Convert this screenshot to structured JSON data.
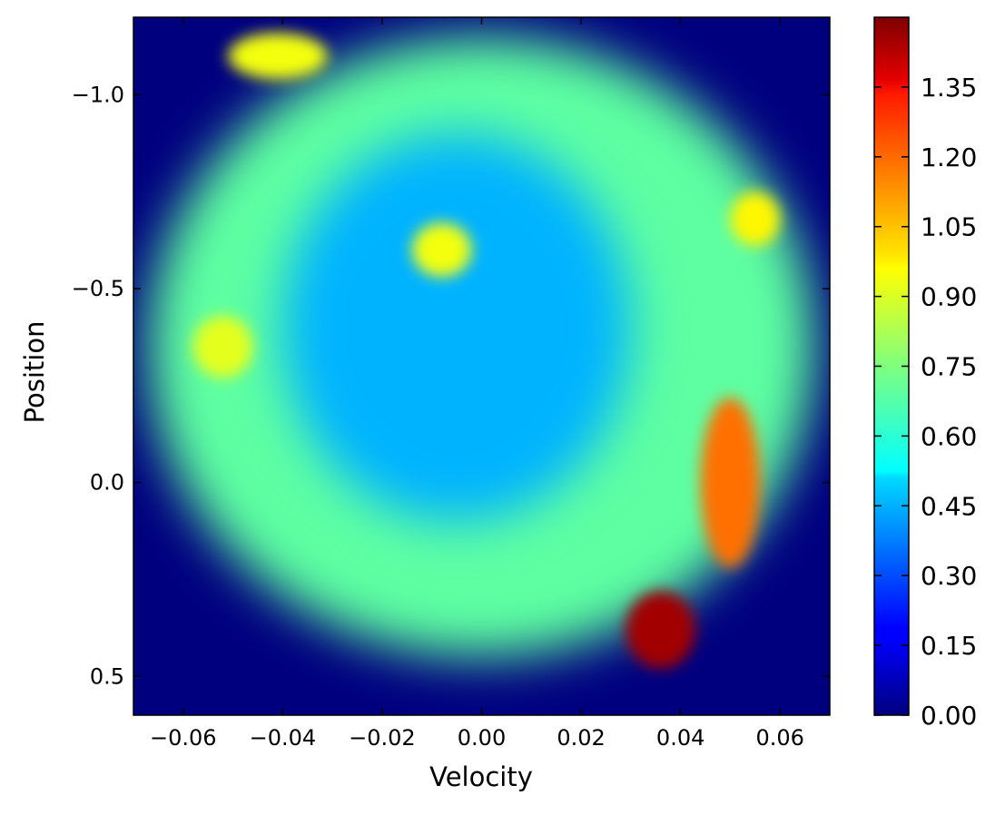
{
  "chart_data": {
    "type": "heatmap",
    "title": "",
    "xlabel": "Velocity",
    "ylabel": "Position",
    "xlim": [
      -0.07,
      0.07
    ],
    "ylim": [
      -1.2,
      0.6
    ],
    "y_inverted": true,
    "x_ticks": [
      -0.06,
      -0.04,
      -0.02,
      0.0,
      0.02,
      0.04,
      0.06
    ],
    "x_tick_labels": [
      "−0.06",
      "−0.04",
      "−0.02",
      "0.00",
      "0.02",
      "0.04",
      "0.06"
    ],
    "y_ticks": [
      -1.0,
      -0.5,
      0.0,
      0.5
    ],
    "y_tick_labels": [
      "−1.0",
      "−0.5",
      "0.0",
      "0.5"
    ],
    "colormap": "jet",
    "colorbar": {
      "range": [
        0.0,
        1.5
      ],
      "ticks": [
        0.0,
        0.15,
        0.3,
        0.45,
        0.6,
        0.75,
        0.9,
        1.05,
        1.2,
        1.35
      ],
      "tick_labels": [
        "0.00",
        "0.15",
        "0.30",
        "0.45",
        "0.60",
        "0.75",
        "0.90",
        "1.05",
        "1.20",
        "1.35"
      ]
    },
    "grid": false,
    "regions": [
      {
        "label": "background",
        "x": [
          -0.07,
          0.07
        ],
        "y": [
          -1.2,
          0.6
        ],
        "value": 0.0
      },
      {
        "label": "outer-ring",
        "center": [
          0.0,
          -0.35
        ],
        "half_width": [
          0.067,
          0.8
        ],
        "value": 0.7
      },
      {
        "label": "inner-hole",
        "center": [
          -0.005,
          -0.4
        ],
        "half_width": [
          0.035,
          0.5
        ],
        "value": 0.45
      },
      {
        "label": "peak-bottom-right",
        "center": [
          0.036,
          0.38
        ],
        "half_width": [
          0.007,
          0.1
        ],
        "value": 1.45
      },
      {
        "label": "ridge-right",
        "center": [
          0.05,
          0.0
        ],
        "half_width": [
          0.006,
          0.22
        ],
        "value": 1.15
      },
      {
        "label": "spot-upper-center",
        "center": [
          -0.008,
          -0.6
        ],
        "half_width": [
          0.006,
          0.07
        ],
        "value": 0.92
      },
      {
        "label": "spot-left",
        "center": [
          -0.052,
          -0.35
        ],
        "half_width": [
          0.006,
          0.08
        ],
        "value": 0.9
      },
      {
        "label": "spot-top",
        "center": [
          -0.041,
          -1.1
        ],
        "half_width": [
          0.01,
          0.06
        ],
        "value": 0.92
      },
      {
        "label": "spot-right-upper",
        "center": [
          0.055,
          -0.68
        ],
        "half_width": [
          0.005,
          0.07
        ],
        "value": 0.95
      }
    ]
  }
}
